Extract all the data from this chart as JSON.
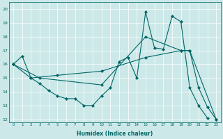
{
  "xlabel": "Humidex (Indice chaleur)",
  "bg_color": "#cce8e8",
  "line_color": "#006666",
  "xlim": [
    -0.5,
    23.5
  ],
  "ylim": [
    11.8,
    20.5
  ],
  "xticks": [
    0,
    1,
    2,
    3,
    4,
    5,
    6,
    7,
    8,
    9,
    10,
    11,
    12,
    13,
    14,
    15,
    16,
    17,
    18,
    19,
    20,
    21,
    22,
    23
  ],
  "yticks": [
    12,
    13,
    14,
    15,
    16,
    17,
    18,
    19,
    20
  ],
  "series": [
    {
      "x": [
        0,
        1,
        2,
        3,
        4,
        5,
        6,
        7,
        8,
        9,
        10,
        11,
        12,
        13,
        14,
        15,
        16,
        17,
        18,
        19,
        20,
        21,
        22
      ],
      "y": [
        16,
        16.6,
        15,
        14.6,
        14.1,
        13.7,
        13.5,
        13.5,
        13,
        13,
        13.7,
        14.3,
        16.2,
        16.5,
        15,
        19.8,
        17.2,
        17.1,
        19.5,
        19.1,
        14.3,
        13,
        12.1
      ]
    },
    {
      "x": [
        0,
        2,
        5,
        10,
        15,
        19,
        20,
        21,
        22,
        23
      ],
      "y": [
        16,
        15,
        15.2,
        15.5,
        16.5,
        17.0,
        17.0,
        14.3,
        12.9,
        12
      ]
    },
    {
      "x": [
        0,
        3,
        10,
        15,
        19,
        20,
        23
      ],
      "y": [
        16,
        15,
        14.5,
        18.0,
        17.0,
        17.0,
        12
      ]
    }
  ]
}
